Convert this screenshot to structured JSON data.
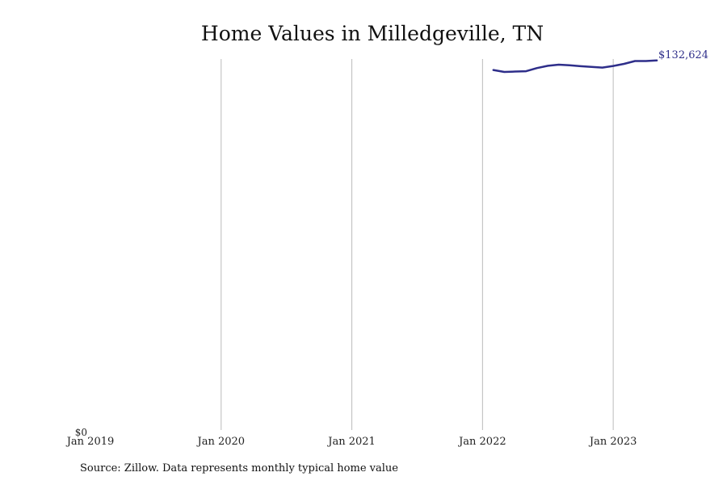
{
  "chart_data": {
    "type": "line",
    "title": "Home Values in Milledgeville, TN",
    "x_ticks": [
      "Jan 2019",
      "Jan 2020",
      "Jan 2021",
      "Jan 2022",
      "Jan 2023"
    ],
    "y_tick_label": "$0",
    "ylim": [
      0,
      132624
    ],
    "xlim": [
      "2019-01",
      "2023-09"
    ],
    "grid": "vertical",
    "series": [
      {
        "color": "#2e2e8a",
        "end_label": "$132,624",
        "points": [
          {
            "x": "2022-02",
            "y": 128700
          },
          {
            "x": "2022-03",
            "y": 128000
          },
          {
            "x": "2022-04",
            "y": 128150
          },
          {
            "x": "2022-05",
            "y": 128250
          },
          {
            "x": "2022-06",
            "y": 129400
          },
          {
            "x": "2022-07",
            "y": 130200
          },
          {
            "x": "2022-08",
            "y": 130600
          },
          {
            "x": "2022-09",
            "y": 130400
          },
          {
            "x": "2022-10",
            "y": 130050
          },
          {
            "x": "2022-11",
            "y": 129800
          },
          {
            "x": "2022-12",
            "y": 129550
          },
          {
            "x": "2023-01",
            "y": 130150
          },
          {
            "x": "2023-02",
            "y": 130900
          },
          {
            "x": "2023-03",
            "y": 131900
          },
          {
            "x": "2023-04",
            "y": 131900
          },
          {
            "x": "2023-05",
            "y": 132100
          }
        ]
      }
    ]
  },
  "source_text": "Source: Zillow. Data represents monthly typical home value"
}
